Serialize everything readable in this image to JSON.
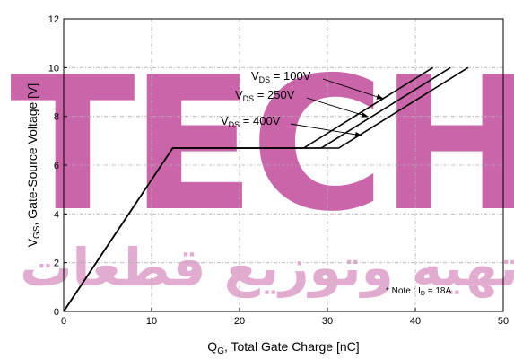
{
  "chart_data": {
    "type": "line",
    "xlabel_main": "Q",
    "xlabel_sub": "G",
    "xlabel_rest": ", Total Gate Charge [nC]",
    "ylabel_main": "V",
    "ylabel_sub": "GS",
    "ylabel_rest": ", Gate-Source Voltage [V]",
    "xlim": [
      0,
      50
    ],
    "ylim": [
      0,
      12
    ],
    "xticks": [
      0,
      10,
      20,
      30,
      40,
      50
    ],
    "yticks": [
      0,
      2,
      4,
      6,
      8,
      10,
      12
    ],
    "grid": true,
    "series": [
      {
        "label_main": "V",
        "label_sub": "DS",
        "label_rest": " = 100V",
        "points": [
          [
            0,
            0
          ],
          [
            12.4,
            6.7
          ],
          [
            27.3,
            6.7
          ],
          [
            42.0,
            10.0
          ]
        ]
      },
      {
        "label_main": "V",
        "label_sub": "DS",
        "label_rest": " = 250V",
        "points": [
          [
            0,
            0
          ],
          [
            12.4,
            6.7
          ],
          [
            29.3,
            6.7
          ],
          [
            44.0,
            10.0
          ]
        ]
      },
      {
        "label_main": "V",
        "label_sub": "DS",
        "label_rest": " = 400V",
        "points": [
          [
            0,
            0
          ],
          [
            12.4,
            6.7
          ],
          [
            31.3,
            6.7
          ],
          [
            46.0,
            10.0
          ]
        ]
      }
    ],
    "note_main": "* Note : I",
    "note_sub": "D",
    "note_rest": " = 18A",
    "line_color": "#000000",
    "grid_color": "#b0b0b0"
  },
  "watermark": {
    "latin_text": "TECH",
    "arabic_text": "تهیه وتوزیع قطعات",
    "color": "#c24b9b"
  }
}
